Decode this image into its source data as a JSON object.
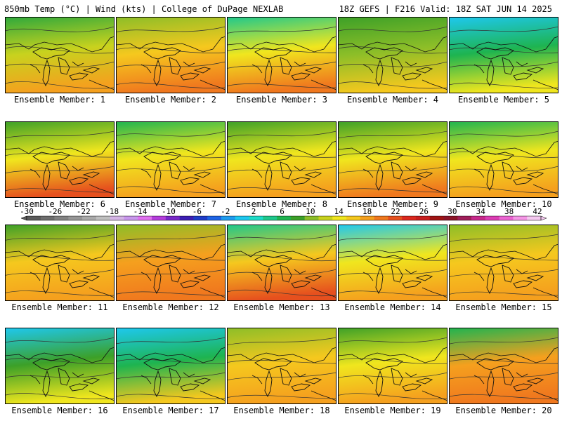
{
  "header": {
    "left_title": "850mb Temp (°C) | Wind (kts) | College of DuPage NEXLAB",
    "right_title": "18Z GEFS | F216 Valid: 18Z SAT JUN 14 2025"
  },
  "colorbar": {
    "labels": [
      "-30",
      "-26",
      "-22",
      "-18",
      "-14",
      "-10",
      "-6",
      "-2",
      "2",
      "6",
      "10",
      "14",
      "18",
      "22",
      "26",
      "30",
      "34",
      "38",
      "42"
    ],
    "colors": [
      "#5a5a5a",
      "#6e6e6e",
      "#828282",
      "#969696",
      "#aaaaaa",
      "#bfbfbf",
      "#d4b4e6",
      "#c896ec",
      "#e070f0",
      "#b43cdc",
      "#7828c8",
      "#3c1eb4",
      "#1e3cc8",
      "#1e64e6",
      "#1e9cf0",
      "#1ec8f0",
      "#1edcc8",
      "#1ec88c",
      "#1eb450",
      "#3ca028",
      "#8cbe28",
      "#c8d21e",
      "#f0e61e",
      "#f5c81e",
      "#f5a01e",
      "#f0781e",
      "#e6501e",
      "#dc281e",
      "#c81e1e",
      "#a01414",
      "#8c1428",
      "#a01e5a",
      "#c8288c",
      "#dc3cb4",
      "#ec64d2",
      "#f596e6",
      "#f5c8f0"
    ]
  },
  "panels": [
    {
      "label": "Ensemble Member: 1",
      "top": "#2ea83c",
      "mid": "#c8d21e",
      "low": "#f5a01e"
    },
    {
      "label": "Ensemble Member: 2",
      "top": "#8cbe28",
      "mid": "#f5c81e",
      "low": "#f0781e"
    },
    {
      "label": "Ensemble Member: 3",
      "top": "#1ec88c",
      "mid": "#f0e61e",
      "low": "#f0781e"
    },
    {
      "label": "Ensemble Member: 4",
      "top": "#3ca028",
      "mid": "#8cbe28",
      "low": "#f5c81e"
    },
    {
      "label": "Ensemble Member: 5",
      "top": "#1ec8f0",
      "mid": "#1eb450",
      "low": "#f0e61e"
    },
    {
      "label": "Ensemble Member: 6",
      "top": "#3ca028",
      "mid": "#f0e61e",
      "low": "#e6501e"
    },
    {
      "label": "Ensemble Member: 7",
      "top": "#1eb450",
      "mid": "#f0e61e",
      "low": "#f5a01e"
    },
    {
      "label": "Ensemble Member: 8",
      "top": "#3ca028",
      "mid": "#f0e61e",
      "low": "#f5a01e"
    },
    {
      "label": "Ensemble Member: 9",
      "top": "#3ca028",
      "mid": "#f0e61e",
      "low": "#f0781e"
    },
    {
      "label": "Ensemble Member: 10",
      "top": "#1eb450",
      "mid": "#f0e61e",
      "low": "#f5a01e"
    },
    {
      "label": "Ensemble Member: 11",
      "top": "#3ca028",
      "mid": "#f5c81e",
      "low": "#f5a01e"
    },
    {
      "label": "Ensemble Member: 12",
      "top": "#8cbe28",
      "mid": "#f5a01e",
      "low": "#f0781e"
    },
    {
      "label": "Ensemble Member: 13",
      "top": "#1ec88c",
      "mid": "#f5c81e",
      "low": "#e6501e"
    },
    {
      "label": "Ensemble Member: 14",
      "top": "#1ec8f0",
      "mid": "#f0e61e",
      "low": "#f5a01e"
    },
    {
      "label": "Ensemble Member: 15",
      "top": "#8cbe28",
      "mid": "#f5c81e",
      "low": "#f5a01e"
    },
    {
      "label": "Ensemble Member: 16",
      "top": "#1ec8f0",
      "mid": "#3ca028",
      "low": "#f0e61e"
    },
    {
      "label": "Ensemble Member: 17",
      "top": "#1ec8f0",
      "mid": "#1eb450",
      "low": "#f5c81e"
    },
    {
      "label": "Ensemble Member: 18",
      "top": "#8cbe28",
      "mid": "#f5c81e",
      "low": "#f5a01e"
    },
    {
      "label": "Ensemble Member: 19",
      "top": "#3ca028",
      "mid": "#f0e61e",
      "low": "#f5a01e"
    },
    {
      "label": "Ensemble Member: 20",
      "top": "#1eb450",
      "mid": "#f5a01e",
      "low": "#f0781e"
    }
  ]
}
